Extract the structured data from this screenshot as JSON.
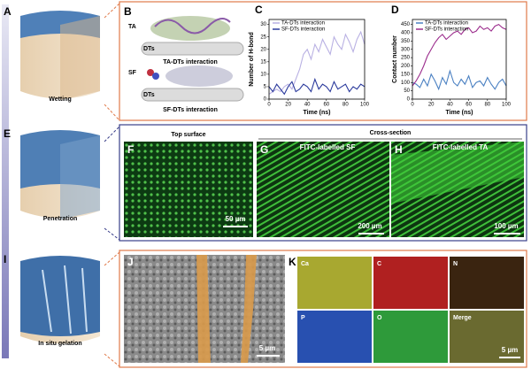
{
  "left": {
    "letters": [
      "A",
      "E",
      "I"
    ],
    "captions": [
      "Wetting",
      "Penetration",
      "In situ gelation"
    ]
  },
  "panel_b": {
    "letter": "B",
    "top_mol": "TA",
    "top_dt": "DTs",
    "top_caption": "TA-DTs interaction",
    "bottom_mol": "SF",
    "bottom_dt": "DTs",
    "bottom_caption": "SF-DTs interaction"
  },
  "chart_data": [
    {
      "type": "line",
      "panel": "C",
      "x_label": "Time (ns)",
      "y_label": "Number of H-bond",
      "x": [
        0,
        4,
        8,
        12,
        16,
        20,
        24,
        28,
        32,
        36,
        40,
        44,
        48,
        52,
        56,
        60,
        64,
        68,
        72,
        76,
        80,
        84,
        88,
        92,
        96,
        100
      ],
      "xlim": [
        0,
        100
      ],
      "xticks": [
        0,
        20,
        40,
        60,
        80,
        100
      ],
      "ylim": [
        0,
        32
      ],
      "yticks": [
        0,
        5,
        10,
        15,
        20,
        25,
        30
      ],
      "series": [
        {
          "name": "TA-DTs interaction",
          "color": "#b9b1e3",
          "values": [
            2,
            3,
            4,
            3,
            5,
            6,
            4,
            8,
            12,
            18,
            20,
            16,
            22,
            19,
            24,
            21,
            18,
            25,
            22,
            20,
            26,
            23,
            19,
            24,
            27,
            22
          ]
        },
        {
          "name": "SF-DTs interaction",
          "color": "#2b3a9c",
          "values": [
            5,
            3,
            6,
            4,
            2,
            5,
            7,
            3,
            4,
            6,
            5,
            3,
            8,
            4,
            6,
            5,
            3,
            7,
            4,
            5,
            6,
            3,
            5,
            4,
            6,
            5
          ]
        }
      ]
    },
    {
      "type": "line",
      "panel": "D",
      "x_label": "Time (ns)",
      "y_label": "Contact number",
      "x": [
        0,
        4,
        8,
        12,
        16,
        20,
        24,
        28,
        32,
        36,
        40,
        44,
        48,
        52,
        56,
        60,
        64,
        68,
        72,
        76,
        80,
        84,
        88,
        92,
        96,
        100
      ],
      "xlim": [
        0,
        100
      ],
      "xticks": [
        0,
        20,
        40,
        60,
        80,
        100
      ],
      "ylim": [
        0,
        480
      ],
      "yticks": [
        0,
        50,
        100,
        150,
        200,
        250,
        300,
        350,
        400,
        450
      ],
      "series": [
        {
          "name": "TA-DTs interaction",
          "color": "#4a80c2",
          "values": [
            100,
            90,
            70,
            120,
            80,
            150,
            110,
            60,
            130,
            90,
            170,
            100,
            80,
            120,
            90,
            140,
            70,
            100,
            110,
            80,
            130,
            90,
            60,
            100,
            120,
            80
          ]
        },
        {
          "name": "SF-DTs interaction",
          "color": "#9b2c8c",
          "values": [
            80,
            110,
            150,
            200,
            260,
            300,
            340,
            370,
            390,
            360,
            380,
            400,
            410,
            390,
            420,
            430,
            400,
            410,
            440,
            420,
            430,
            410,
            440,
            450,
            430,
            420
          ]
        }
      ]
    }
  ],
  "microscopy": {
    "letters": [
      "F",
      "G",
      "H"
    ],
    "top_surface": "Top surface",
    "cross_section": "Cross-section",
    "g_title": "FITC-labelled SF",
    "h_title": "FITC-labelled TA",
    "scales": [
      "50 µm",
      "200 µm",
      "100 µm"
    ]
  },
  "bottom": {
    "letters": [
      "J",
      "K"
    ],
    "j_scale": "5 µm",
    "maps": [
      "Ca",
      "C",
      "N",
      "P",
      "O",
      "Merge"
    ],
    "k_scale": "5 µm"
  }
}
